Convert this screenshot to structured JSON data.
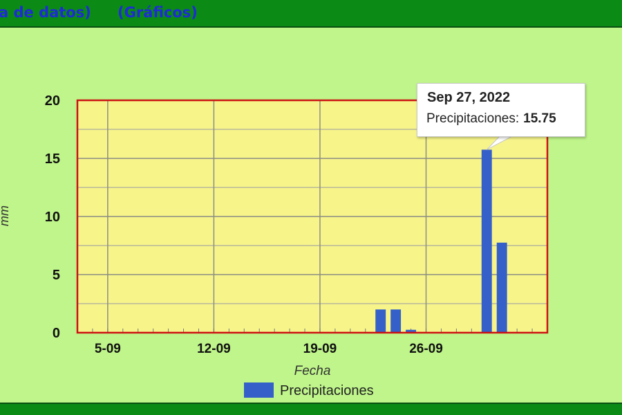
{
  "header": {
    "link1_label": "a de datos)",
    "link2_label": "(Gráficos)"
  },
  "tooltip": {
    "date": "Sep 27, 2022",
    "series_label": "Precipitaciones:",
    "value": "15.75"
  },
  "colors": {
    "background": "#bff58a",
    "plot_background": "#f7f58a",
    "plot_border": "#cc1111",
    "bar": "#3560c9",
    "header_bar": "#0b8a16",
    "link": "#1f2bd6"
  },
  "chart_data": {
    "type": "bar",
    "xlabel": "Fecha",
    "ylabel": "mm",
    "ylim": [
      0,
      20
    ],
    "yticks": [
      "0",
      "5",
      "10",
      "15",
      "20"
    ],
    "xticks": [
      {
        "label": "5-09",
        "day": 5
      },
      {
        "label": "12-09",
        "day": 12
      },
      {
        "label": "19-09",
        "day": 19
      },
      {
        "label": "26-09",
        "day": 26
      }
    ],
    "xlim_days": [
      1,
      30
    ],
    "grid": true,
    "legend_position": "bottom",
    "series": [
      {
        "name": "Precipitaciones",
        "points": [
          {
            "day": 1,
            "value": 0
          },
          {
            "day": 2,
            "value": 0
          },
          {
            "day": 3,
            "value": 0
          },
          {
            "day": 4,
            "value": 0
          },
          {
            "day": 5,
            "value": 0
          },
          {
            "day": 6,
            "value": 0
          },
          {
            "day": 7,
            "value": 0
          },
          {
            "day": 8,
            "value": 0
          },
          {
            "day": 9,
            "value": 0
          },
          {
            "day": 10,
            "value": 0
          },
          {
            "day": 11,
            "value": 0
          },
          {
            "day": 12,
            "value": 0
          },
          {
            "day": 13,
            "value": 0
          },
          {
            "day": 14,
            "value": 0
          },
          {
            "day": 15,
            "value": 0
          },
          {
            "day": 16,
            "value": 0
          },
          {
            "day": 17,
            "value": 0
          },
          {
            "day": 18,
            "value": 0
          },
          {
            "day": 19,
            "value": 0
          },
          {
            "day": 20,
            "value": 2.0
          },
          {
            "day": 21,
            "value": 2.0
          },
          {
            "day": 22,
            "value": 0.25
          },
          {
            "day": 23,
            "value": 0
          },
          {
            "day": 24,
            "value": 0
          },
          {
            "day": 25,
            "value": 0
          },
          {
            "day": 26,
            "value": 0
          },
          {
            "day": 27,
            "value": 15.75
          },
          {
            "day": 28,
            "value": 7.75
          },
          {
            "day": 29,
            "value": 0
          },
          {
            "day": 30,
            "value": 0
          }
        ]
      }
    ]
  }
}
